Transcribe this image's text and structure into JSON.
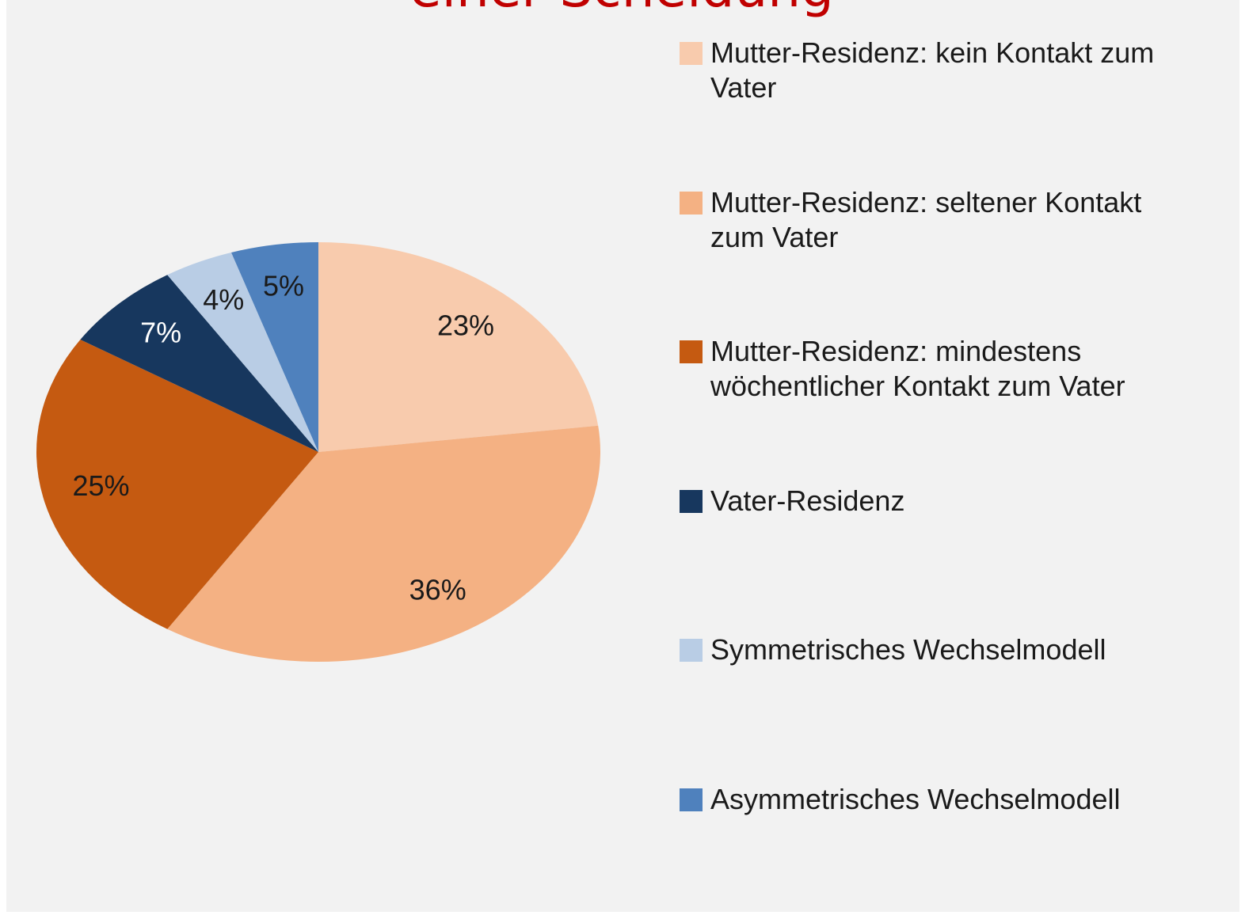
{
  "chart_data": {
    "type": "pie",
    "title": "einer Scheidung",
    "categories": [
      "Mutter-Residenz: kein Kontakt zum Vater",
      "Mutter-Residenz: seltener Kontakt zum Vater",
      "Mutter-Residenz: mindestens wöchentlicher Kontakt zum Vater",
      "Vater-Residenz",
      "Symmetrisches Wechselmodell",
      "Asymmetrisches Wechselmodell"
    ],
    "values": [
      23,
      36,
      25,
      7,
      4,
      5
    ],
    "value_labels": [
      "23%",
      "36%",
      "25%",
      "7%",
      "4%",
      "5%"
    ],
    "colors": [
      "#f8cbad",
      "#f4b183",
      "#c55a11",
      "#17375e",
      "#b9cde5",
      "#4f81bd"
    ],
    "legend": "right"
  }
}
